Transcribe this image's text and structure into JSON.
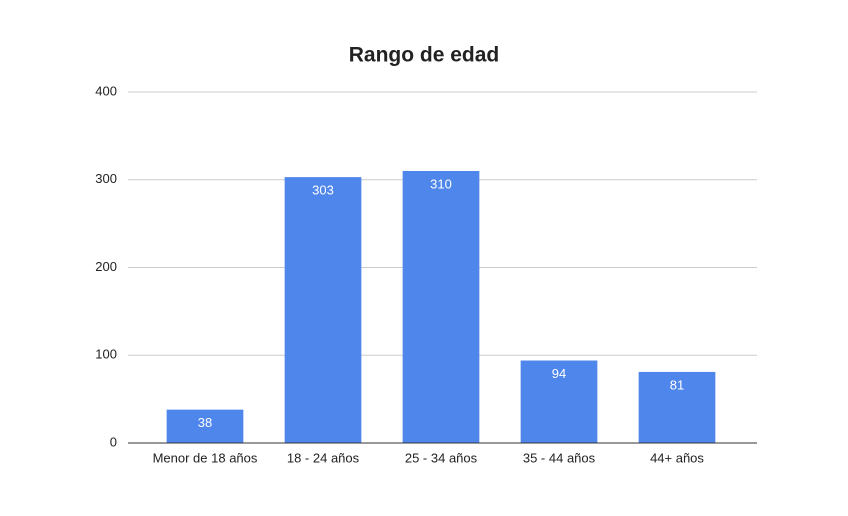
{
  "chart_data": {
    "type": "bar",
    "title": "Rango de edad",
    "categories": [
      "Menor de 18 años",
      "18 - 24 años",
      "25 - 34 años",
      "35 - 44 años",
      "44+ años"
    ],
    "values": [
      38,
      303,
      310,
      94,
      81
    ],
    "color": "#4f86ec",
    "ylim": [
      0,
      400
    ],
    "yticks": [
      0,
      100,
      200,
      300,
      400
    ],
    "grid": true,
    "data_labels": true
  }
}
